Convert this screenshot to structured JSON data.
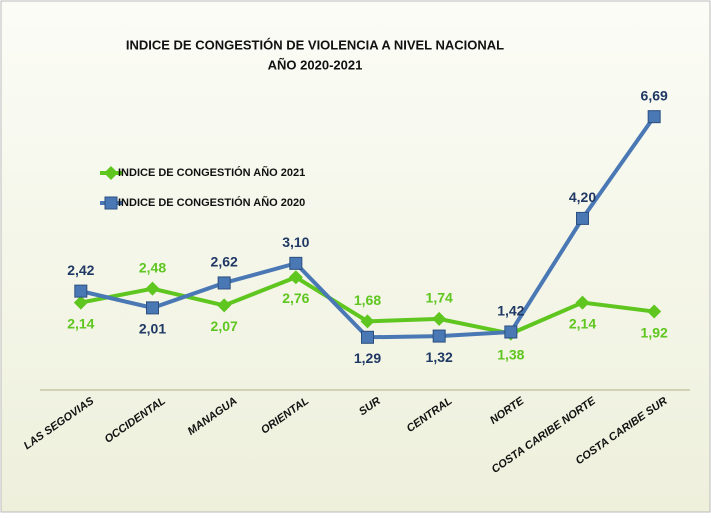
{
  "chart_data": {
    "type": "line",
    "title": "INDICE DE CONGESTIÓN  DE VIOLENCIA  A NIVEL NACIONAL",
    "subtitle": "AÑO 2020-2021",
    "categories": [
      "LAS SEGOVIAS",
      "OCCIDENTAL",
      "MANAGUA",
      "ORIENTAL",
      "SUR",
      "CENTRAL",
      "NORTE",
      "COSTA CARIBE NORTE",
      "COSTA CARIBE SUR"
    ],
    "series": [
      {
        "name": "INDICE  DE CONGESTIÓN AÑO 2021",
        "color": "#5fc61f",
        "marker": "diamond",
        "values": [
          2.14,
          2.48,
          2.07,
          2.76,
          1.68,
          1.74,
          1.38,
          2.14,
          1.92
        ],
        "value_labels": [
          "2,14",
          "2,48",
          "2,07",
          "2,76",
          "1,68",
          "1,74",
          "1,38",
          "2,14",
          "1,92"
        ]
      },
      {
        "name": "INDICE DE CONGESTIÓN  AÑO 2020",
        "color": "#4a78b4",
        "marker": "square",
        "values": [
          2.42,
          2.01,
          2.62,
          3.1,
          1.29,
          1.32,
          1.42,
          4.2,
          6.69
        ],
        "value_labels": [
          "2,42",
          "2,01",
          "2,62",
          "3,10",
          "1,29",
          "1,32",
          "1,42",
          "4,20",
          "6,69"
        ]
      }
    ],
    "ylim": [
      0,
      7
    ],
    "legend": "upper left"
  }
}
